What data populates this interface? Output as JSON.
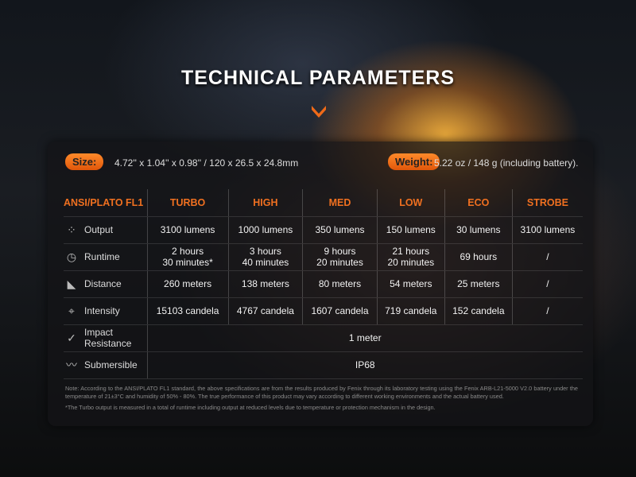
{
  "title": "TECHNICAL PARAMETERS",
  "accent": "#f07020",
  "size": {
    "label": "Size:",
    "value": "4.72'' x 1.04'' x 0.98'' / 120 x 26.5 x 24.8mm"
  },
  "weight": {
    "label": "Weight:",
    "value": "5.22 oz / 148 g (including battery)."
  },
  "table": {
    "headers": [
      "ANSI/PLATO FL1",
      "TURBO",
      "HIGH",
      "MED",
      "LOW",
      "ECO",
      "STROBE"
    ],
    "rows": [
      {
        "icon": "output-rays-icon",
        "label": "Output",
        "cells": [
          "3100 lumens",
          "1000 lumens",
          "350 lumens",
          "150 lumens",
          "30 lumens",
          "3100 lumens"
        ]
      },
      {
        "icon": "clock-icon",
        "label": "Runtime",
        "cells": [
          "2 hours\n30 minutes*",
          "3 hours\n40 minutes",
          "9 hours\n20 minutes",
          "21 hours\n20 minutes",
          "69 hours",
          "/"
        ]
      },
      {
        "icon": "distance-beam-icon",
        "label": "Distance",
        "cells": [
          "260 meters",
          "138 meters",
          "80 meters",
          "54 meters",
          "25 meters",
          "/"
        ]
      },
      {
        "icon": "crosshair-icon",
        "label": "Intensity",
        "cells": [
          "15103 candela",
          "4767 candela",
          "1607 candela",
          "719 candela",
          "152 candela",
          "/"
        ]
      },
      {
        "icon": "impact-check-icon",
        "label": "Impact\nResistance",
        "merged": "1 meter"
      },
      {
        "icon": "water-wave-icon",
        "label": "Submersible",
        "merged": "IP68"
      }
    ]
  },
  "note": "Note: According to the ANSI/PLATO FL1 standard, the above specifications are from the results produced by Fenix through its laboratory testing using the Fenix ARB-L21-5000 V2.0 battery under the temperature of 21±3°C and humidity of 50% - 80%. The true performance of this product may vary according to different working environments and the actual battery used.",
  "footnote": "*The Turbo output is measured in a total of runtime including output at reduced levels due to temperature or protection mechanism in the design."
}
